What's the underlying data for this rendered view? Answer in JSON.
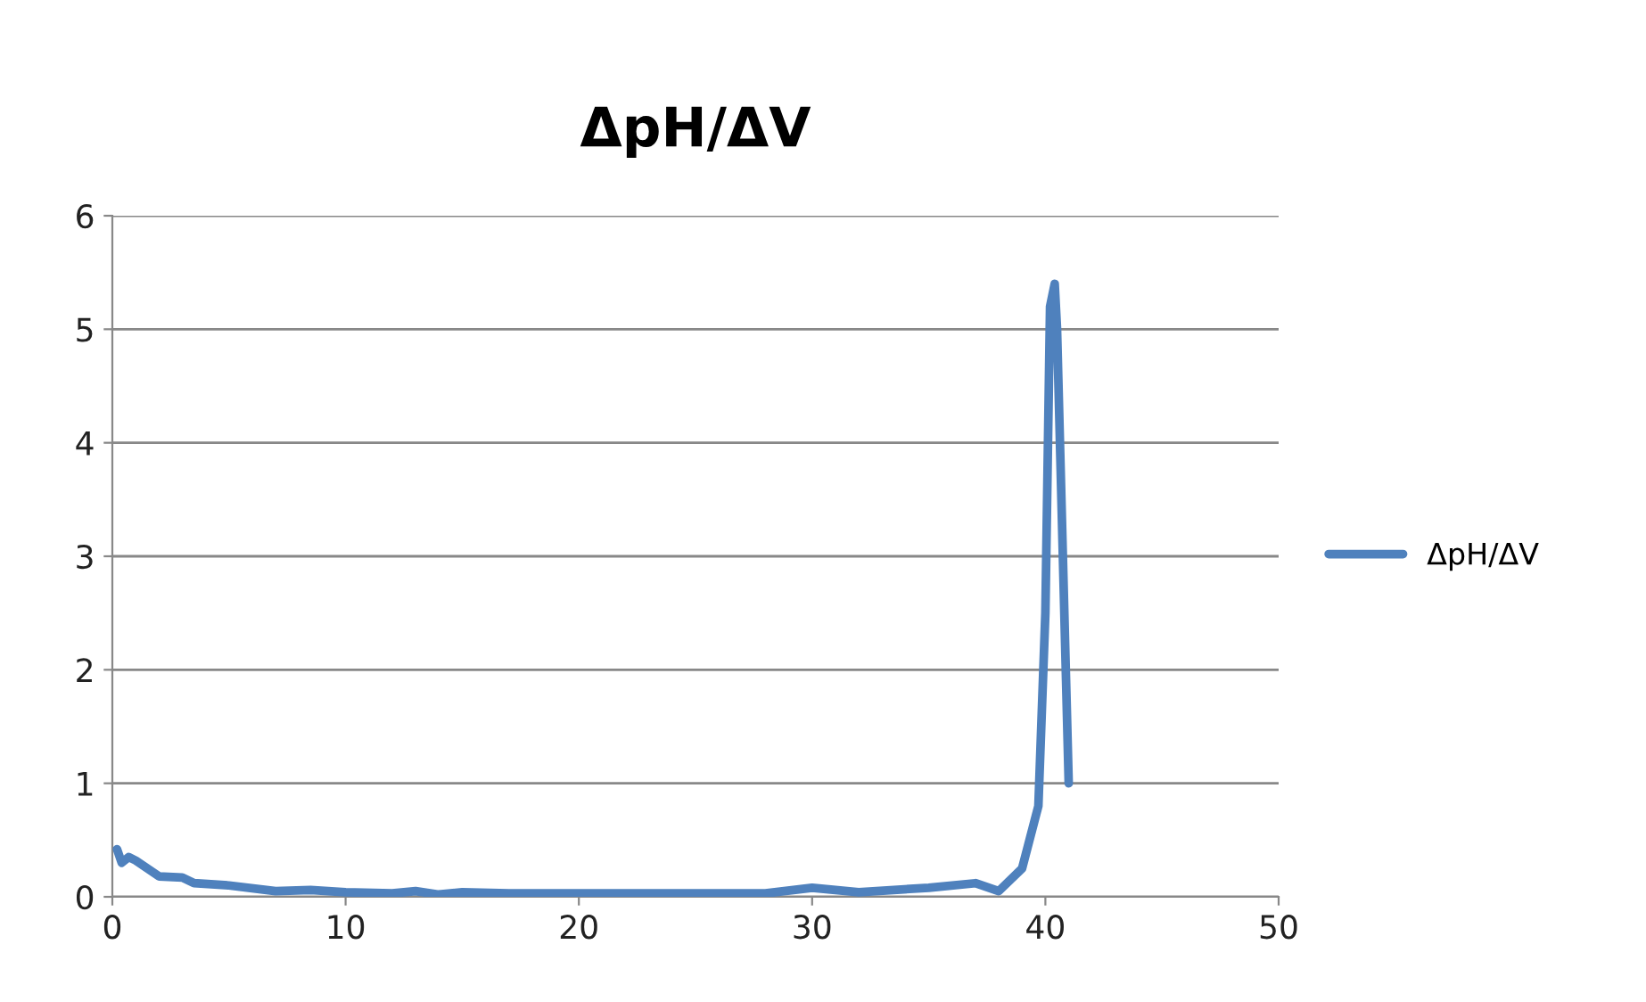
{
  "chart_data": {
    "type": "line",
    "title": "ΔpH/ΔV",
    "series": [
      {
        "name": "ΔpH/ΔV",
        "color": "#4f81bd",
        "x": [
          0.2,
          0.4,
          0.7,
          1,
          2,
          3,
          3.5,
          5,
          7,
          8.5,
          10,
          12,
          13,
          14,
          15,
          17,
          20,
          25,
          28,
          30,
          32,
          35,
          37,
          38,
          39,
          39.7,
          40,
          40.2,
          40.4,
          40.5,
          41
        ],
        "values": [
          0.42,
          0.3,
          0.35,
          0.32,
          0.18,
          0.17,
          0.12,
          0.1,
          0.05,
          0.06,
          0.04,
          0.03,
          0.05,
          0.02,
          0.04,
          0.03,
          0.03,
          0.03,
          0.03,
          0.08,
          0.04,
          0.08,
          0.12,
          0.05,
          0.25,
          0.8,
          2.5,
          5.2,
          5.4,
          5.0,
          1.0
        ]
      }
    ],
    "xlim": [
      0,
      50
    ],
    "xticks": [
      0,
      10,
      20,
      30,
      40,
      50
    ],
    "ylim": [
      0,
      6
    ],
    "yticks": [
      0,
      1,
      2,
      3,
      4,
      5,
      6
    ],
    "grid": "y",
    "legend": "right",
    "marker": "none",
    "line_style": "solid"
  }
}
